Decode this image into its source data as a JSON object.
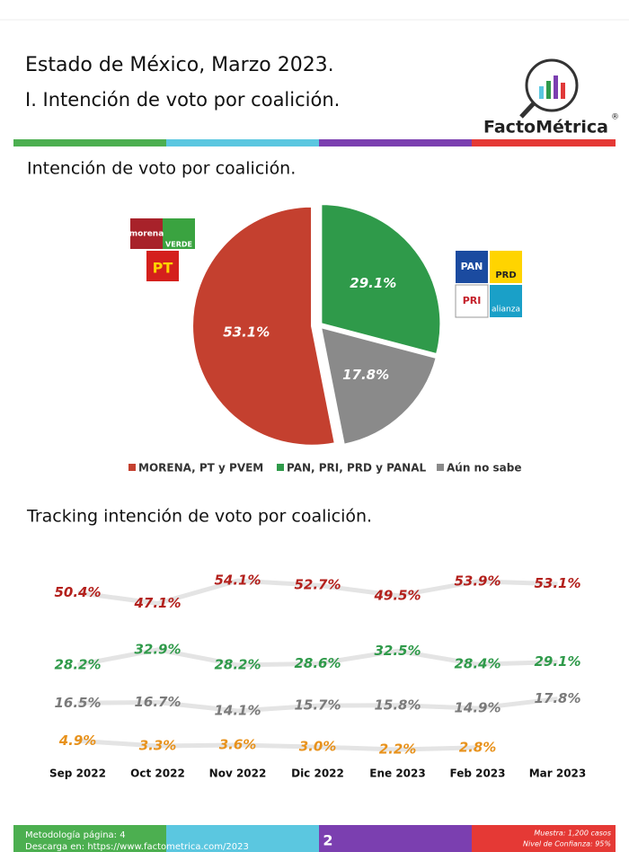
{
  "header": {
    "title": "Estado de México, Marzo 2023.",
    "subtitle": "I. Intención de voto por coalición.",
    "brand": "FactoMétrica",
    "brand_mark": "®"
  },
  "logos": {
    "left": [
      "morena",
      "VERDE",
      "PT"
    ],
    "right": [
      "PAN",
      "PRD",
      "PRI",
      "alianza"
    ]
  },
  "chart_data": [
    {
      "type": "pie",
      "title": "Intención de voto por coalición.",
      "categories": [
        "MORENA, PT y PVEM",
        "PAN, PRI, PRD y PANAL",
        "Aún no sabe"
      ],
      "values": [
        53.1,
        29.1,
        17.8
      ],
      "value_labels": [
        "53.1%",
        "29.1%",
        "17.8%"
      ],
      "colors": [
        "#c4402f",
        "#2f9a4a",
        "#8a8a8a"
      ]
    },
    {
      "type": "line",
      "title": "Tracking intención de voto por coalición.",
      "categories": [
        "Sep 2022",
        "Oct 2022",
        "Nov 2022",
        "Dic 2022",
        "Ene 2023",
        "Feb 2023",
        "Mar 2023"
      ],
      "ylim": [
        0,
        58
      ],
      "series": [
        {
          "color": "#b3201c",
          "values": [
            50.4,
            47.1,
            54.1,
            52.7,
            49.5,
            53.9,
            53.1
          ],
          "value_labels": [
            "50.4%",
            "47.1%",
            "54.1%",
            "52.7%",
            "49.5%",
            "53.9%",
            "53.1%"
          ]
        },
        {
          "color": "#2f9a4a",
          "values": [
            28.2,
            32.9,
            28.2,
            28.6,
            32.5,
            28.4,
            29.1
          ],
          "value_labels": [
            "28.2%",
            "32.9%",
            "28.2%",
            "28.6%",
            "32.5%",
            "28.4%",
            "29.1%"
          ]
        },
        {
          "color": "#7a7a7a",
          "values": [
            16.5,
            16.7,
            14.1,
            15.7,
            15.8,
            14.9,
            17.8
          ],
          "value_labels": [
            "16.5%",
            "16.7%",
            "14.1%",
            "15.7%",
            "15.8%",
            "14.9%",
            "17.8%"
          ]
        },
        {
          "color": "#e8921c",
          "values": [
            4.9,
            3.3,
            3.6,
            3.0,
            2.2,
            2.8,
            null
          ],
          "value_labels": [
            "4.9%",
            "3.3%",
            "3.6%",
            "3.0%",
            "2.2%",
            "2.8%",
            null
          ]
        }
      ]
    }
  ],
  "footer": {
    "left": [
      "Metodología página: 4",
      "Descarga en: https://www.factometrica.com/2023"
    ],
    "page": "2",
    "right": [
      "Muestra: 1,200 casos",
      "Nivel de Confianza: 95%"
    ]
  }
}
